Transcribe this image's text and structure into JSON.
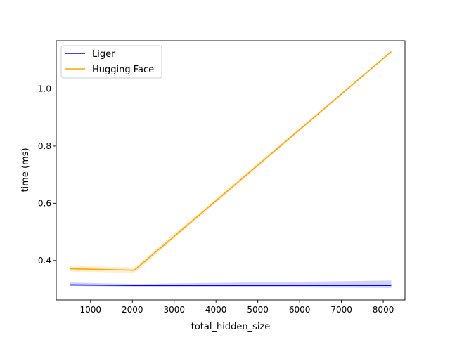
{
  "chart_data": {
    "type": "line",
    "title": "",
    "xlabel": "total_hidden_size",
    "ylabel": "time (ms)",
    "xlim": [
      180,
      8520
    ],
    "ylim": [
      0.262,
      1.168
    ],
    "x_ticks": [
      1000,
      2000,
      3000,
      4000,
      5000,
      6000,
      7000,
      8000
    ],
    "x_tick_labels": [
      "1000",
      "2000",
      "3000",
      "4000",
      "5000",
      "6000",
      "7000",
      "8000"
    ],
    "y_ticks": [
      0.4,
      0.6,
      0.8,
      1.0
    ],
    "y_tick_labels": [
      "0.4",
      "0.6",
      "0.8",
      "1.0"
    ],
    "grid": false,
    "legend_position": "upper-left",
    "x": [
      512,
      2048,
      8192
    ],
    "series": [
      {
        "name": "Liger",
        "color": "#0000ff",
        "values": [
          0.315,
          0.313,
          0.313
        ],
        "band_lower": [
          0.311,
          0.309,
          0.304
        ],
        "band_upper": [
          0.323,
          0.318,
          0.33
        ]
      },
      {
        "name": "Hugging Face",
        "color": "#ffa500",
        "values": [
          0.371,
          0.366,
          1.13
        ],
        "band_lower": [
          0.361,
          0.357,
          1.127
        ],
        "band_upper": [
          0.381,
          0.376,
          1.133
        ]
      }
    ]
  }
}
